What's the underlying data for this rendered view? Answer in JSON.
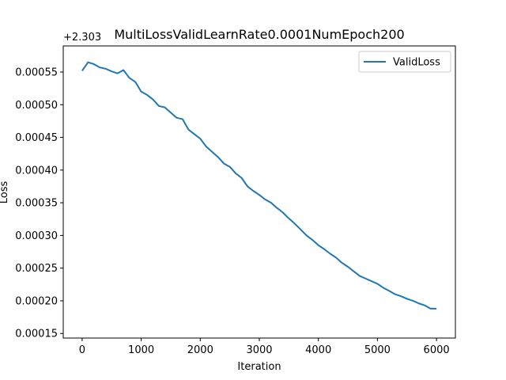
{
  "chart_data": {
    "type": "line",
    "title": "MultiLossValidLearnRate0.0001NumEpoch200",
    "xlabel": "Iteration",
    "ylabel": "Loss",
    "y_offset_label": "+2.303",
    "xlim": [
      -320,
      6320
    ],
    "ylim": [
      0.000143,
      0.00059
    ],
    "x_ticks": [
      0,
      1000,
      2000,
      3000,
      4000,
      5000,
      6000
    ],
    "y_ticks": [
      0.00015,
      0.0002,
      0.00025,
      0.0003,
      0.00035,
      0.0004,
      0.00045,
      0.0005,
      0.00055
    ],
    "x_tick_labels": [
      "0",
      "1000",
      "2000",
      "3000",
      "4000",
      "5000",
      "6000"
    ],
    "y_tick_labels": [
      "0.00015",
      "0.00020",
      "0.00025",
      "0.00030",
      "0.00035",
      "0.00040",
      "0.00045",
      "0.00050",
      "0.00055"
    ],
    "grid": false,
    "legend_position": "top-right",
    "series": [
      {
        "name": "ValidLoss",
        "color": "#1f77b4",
        "x": [
          0,
          100,
          200,
          300,
          400,
          500,
          600,
          700,
          800,
          900,
          1000,
          1100,
          1200,
          1300,
          1400,
          1500,
          1600,
          1700,
          1800,
          1900,
          2000,
          2100,
          2200,
          2300,
          2400,
          2500,
          2600,
          2700,
          2800,
          2900,
          3000,
          3100,
          3200,
          3300,
          3400,
          3500,
          3600,
          3700,
          3800,
          3900,
          4000,
          4100,
          4200,
          4300,
          4400,
          4500,
          4600,
          4700,
          4800,
          4900,
          5000,
          5100,
          5200,
          5300,
          5400,
          5500,
          5600,
          5700,
          5800,
          5900,
          6000
        ],
        "y": [
          0.000552,
          0.000565,
          0.000562,
          0.000557,
          0.000555,
          0.000551,
          0.000548,
          0.000553,
          0.000541,
          0.000535,
          0.00052,
          0.000515,
          0.000508,
          0.000498,
          0.000496,
          0.000488,
          0.00048,
          0.000478,
          0.000462,
          0.000455,
          0.000448,
          0.000436,
          0.000428,
          0.00042,
          0.00041,
          0.000405,
          0.000395,
          0.000388,
          0.000375,
          0.000368,
          0.000362,
          0.000355,
          0.00035,
          0.000342,
          0.000335,
          0.000326,
          0.000318,
          0.000309,
          0.0003,
          0.000293,
          0.000285,
          0.000279,
          0.000272,
          0.000266,
          0.000258,
          0.000252,
          0.000245,
          0.000238,
          0.000234,
          0.00023,
          0.000226,
          0.00022,
          0.000215,
          0.00021,
          0.000207,
          0.000203,
          0.0002,
          0.000196,
          0.000193,
          0.000188,
          0.000188
        ]
      }
    ]
  }
}
